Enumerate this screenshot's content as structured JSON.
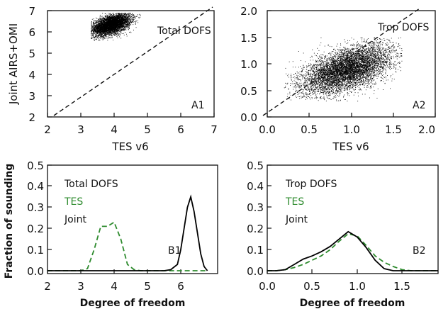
{
  "figure": {
    "background": "#ffffff"
  },
  "chart_data": [
    {
      "id": "A1",
      "type": "scatter",
      "title": "",
      "xlabel": "TES v6",
      "ylabel": "Joint AIRS+OMI",
      "xlim": [
        2,
        7
      ],
      "ylim": [
        2,
        7
      ],
      "xticks": [
        "2",
        "3",
        "4",
        "5",
        "6",
        "7"
      ],
      "yticks": [
        "2",
        "3",
        "4",
        "5",
        "6",
        "7"
      ],
      "annotations": [
        "Total DOFS",
        "A1"
      ],
      "one_to_one_line": true,
      "point_color": "#000000",
      "cloud": {
        "x_center": 3.9,
        "y_center": 6.35,
        "x_range": [
          3.3,
          4.8
        ],
        "y_range": [
          5.6,
          6.9
        ],
        "correlation": 0.5
      },
      "grid": false,
      "legend": "none"
    },
    {
      "id": "A2",
      "type": "scatter",
      "title": "",
      "xlabel": "TES v6",
      "ylabel": "",
      "xlim": [
        0.0,
        2.0
      ],
      "ylim": [
        0.0,
        2.0
      ],
      "xticks": [
        "0.0",
        "0.5",
        "1.0",
        "1.5",
        "2.0"
      ],
      "yticks": [
        "0.0",
        "0.5",
        "1.0",
        "1.5",
        "2.0"
      ],
      "annotations": [
        "Trop DOFS",
        "A2"
      ],
      "one_to_one_line": true,
      "point_color": "#000000",
      "cloud": {
        "x_center": 0.95,
        "y_center": 0.9,
        "x_range": [
          0.2,
          1.6
        ],
        "y_range": [
          0.3,
          1.5
        ],
        "correlation": 0.55
      },
      "grid": false,
      "legend": "none"
    },
    {
      "id": "B1",
      "type": "line",
      "title": "",
      "xlabel": "Degree of freedom",
      "ylabel": "Fraction of sounding",
      "xlim": [
        2,
        7
      ],
      "ylim": [
        0.0,
        0.5
      ],
      "xticks": [
        "2",
        "3",
        "4",
        "5",
        "6"
      ],
      "yticks": [
        "0.0",
        "0.1",
        "0.2",
        "0.3",
        "0.4",
        "0.5"
      ],
      "annotations": [
        "Total DOFS",
        "B1"
      ],
      "series": [
        {
          "name": "TES",
          "color": "#2e8b2e",
          "dash": true,
          "x": [
            2.0,
            2.2,
            2.4,
            2.6,
            2.8,
            3.0,
            3.2,
            3.4,
            3.6,
            3.8,
            4.0,
            4.2,
            4.4,
            4.6,
            4.8,
            5.0,
            5.5,
            6.0,
            6.5,
            6.8
          ],
          "y": [
            0,
            0,
            0,
            0,
            0,
            0,
            0.01,
            0.1,
            0.21,
            0.21,
            0.23,
            0.15,
            0.03,
            0.005,
            0,
            0,
            0,
            0,
            0,
            0
          ]
        },
        {
          "name": "Joint",
          "color": "#000000",
          "dash": false,
          "x": [
            2.0,
            3.0,
            4.0,
            5.0,
            5.5,
            5.7,
            5.9,
            6.0,
            6.1,
            6.2,
            6.3,
            6.4,
            6.5,
            6.6,
            6.7,
            6.8
          ],
          "y": [
            0,
            0,
            0,
            0,
            0,
            0.005,
            0.03,
            0.1,
            0.2,
            0.3,
            0.35,
            0.28,
            0.18,
            0.08,
            0.02,
            0
          ]
        }
      ],
      "grid": false,
      "legend": "top-left"
    },
    {
      "id": "B2",
      "type": "line",
      "title": "",
      "xlabel": "Degree of freedom",
      "ylabel": "",
      "xlim": [
        0.0,
        1.9
      ],
      "ylim": [
        0.0,
        0.5
      ],
      "xticks": [
        "0.0",
        "0.5",
        "1.0",
        "1.5"
      ],
      "yticks": [
        "0.0",
        "0.1",
        "0.2",
        "0.3",
        "0.4",
        "0.5"
      ],
      "annotations": [
        "Trop DOFS",
        "B2"
      ],
      "series": [
        {
          "name": "TES",
          "color": "#2e8b2e",
          "dash": true,
          "x": [
            0.0,
            0.1,
            0.2,
            0.3,
            0.4,
            0.5,
            0.6,
            0.7,
            0.8,
            0.9,
            1.0,
            1.1,
            1.2,
            1.3,
            1.4,
            1.5,
            1.6,
            1.7,
            1.8,
            1.9
          ],
          "y": [
            0,
            0,
            0.005,
            0.015,
            0.03,
            0.05,
            0.07,
            0.1,
            0.14,
            0.175,
            0.165,
            0.12,
            0.07,
            0.04,
            0.02,
            0.005,
            0,
            0,
            0,
            0
          ]
        },
        {
          "name": "Joint",
          "color": "#000000",
          "dash": false,
          "x": [
            0.0,
            0.1,
            0.2,
            0.3,
            0.4,
            0.5,
            0.6,
            0.7,
            0.8,
            0.9,
            1.0,
            1.1,
            1.2,
            1.3,
            1.4,
            1.5,
            1.6,
            1.7,
            1.8,
            1.9
          ],
          "y": [
            0,
            0,
            0.005,
            0.03,
            0.055,
            0.07,
            0.09,
            0.115,
            0.15,
            0.185,
            0.16,
            0.11,
            0.05,
            0.01,
            0,
            0,
            0,
            0,
            0,
            0
          ]
        }
      ],
      "grid": false,
      "legend": "top-left"
    }
  ]
}
